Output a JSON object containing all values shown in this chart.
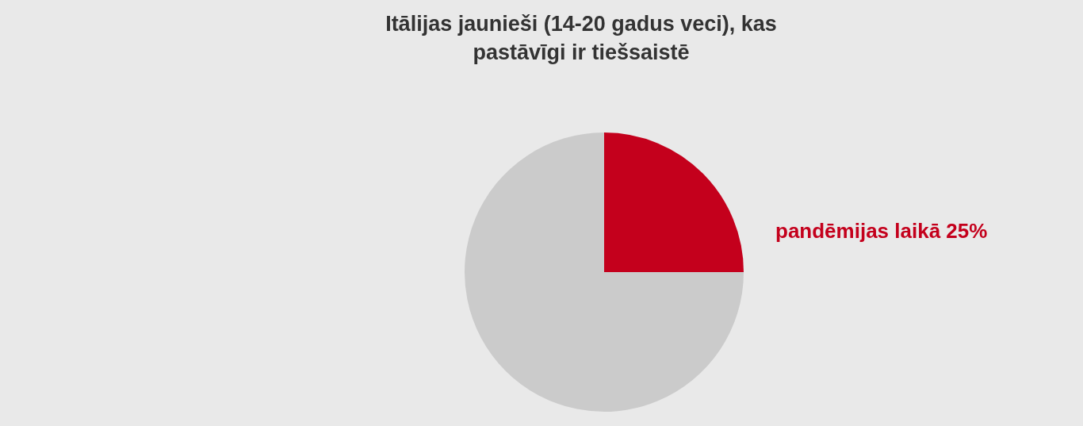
{
  "chart_data": {
    "type": "pie",
    "title": "Itālijas jaunieši (14-20 gadus veci), kas pastāvīgi ir tiešsaistē",
    "categories": [
      "pandēmijas laikā",
      null
    ],
    "values": [
      25,
      75
    ],
    "colors": [
      "#c4001c",
      "#cbcbcb"
    ],
    "value_labels": [
      "25%",
      null
    ],
    "legend": false
  }
}
